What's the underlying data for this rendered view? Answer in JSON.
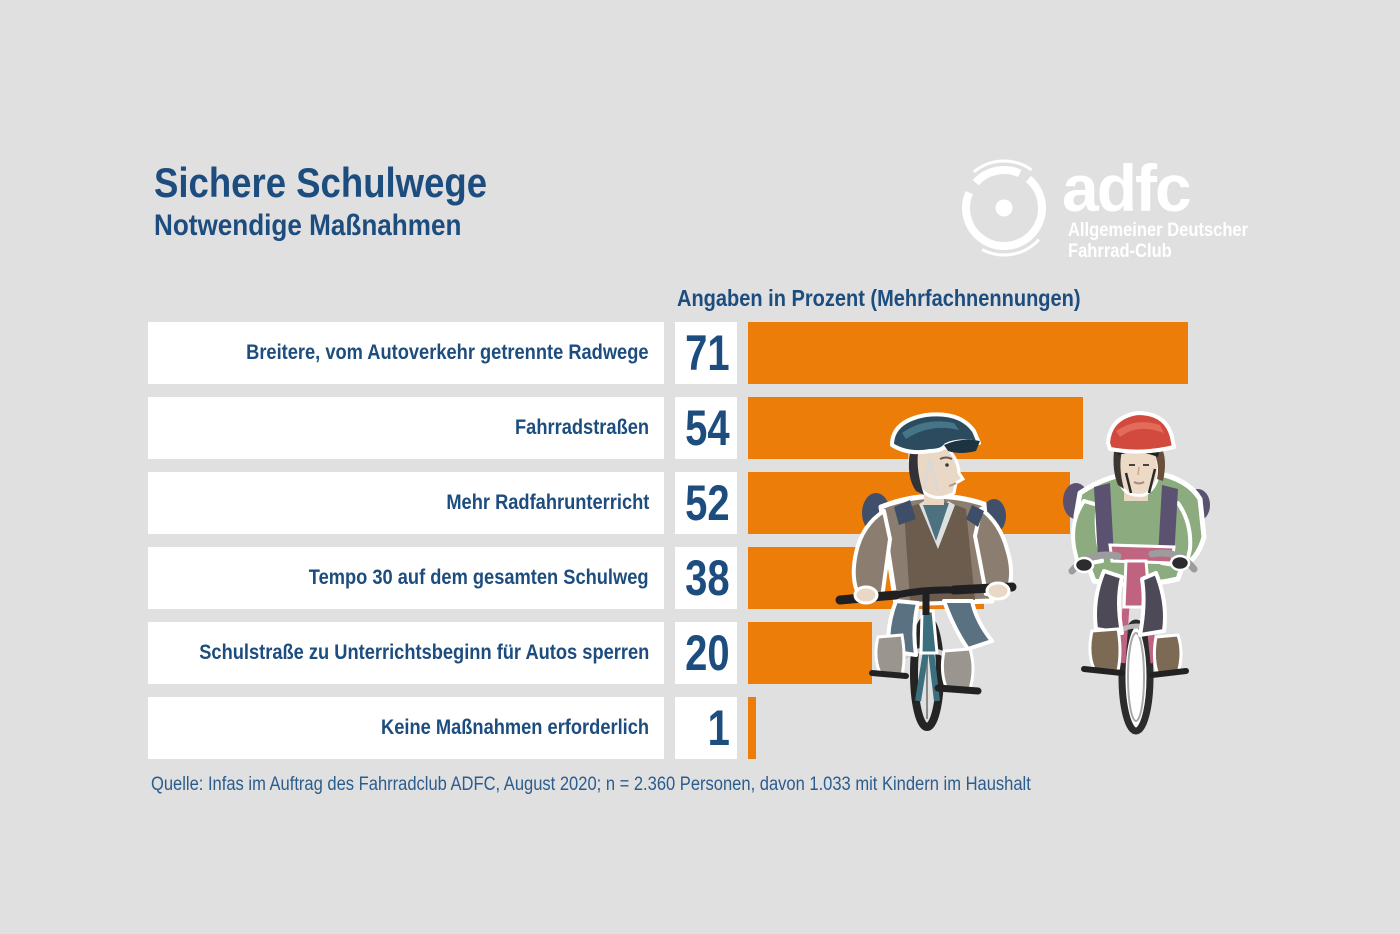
{
  "header": {
    "title": "Sichere Schulwege",
    "subtitle": "Notwendige Maßnahmen"
  },
  "logo": {
    "brand": "adfc",
    "subtitle_line1": "Allgemeiner Deutscher",
    "subtitle_line2": "Fahrrad-Club",
    "icon": "bicycle-wheel-icon",
    "color": "#ffffff"
  },
  "chart_data": {
    "type": "bar",
    "orientation": "horizontal",
    "title": "Angaben in Prozent (Mehrfachnennungen)",
    "unit": "percent",
    "categories": [
      "Breitere, vom Autoverkehr getrennte Radwege",
      "Fahrradstraßen",
      "Mehr Radfahrunterricht",
      "Tempo 30 auf dem gesamten Schulweg",
      "Schulstraße zu Unterrichtsbeginn für Autos sperren",
      "Keine Maßnahmen erforderlich"
    ],
    "values": [
      71,
      54,
      52,
      38,
      20,
      1
    ],
    "xlim": [
      0,
      80
    ],
    "bar_color": "#ec7d08",
    "grid": false,
    "legend": "none"
  },
  "illustration": {
    "name": "two-children-cycling",
    "left_child": "blue helmet, brown sweater, teal bicycle",
    "right_child": "red helmet, green sweater, pink bicycle"
  },
  "source": "Quelle: Infas im Auftrag des Fahrradclub ADFC, August 2020; n = 2.360 Personen, davon 1.033 mit Kindern im Haushalt",
  "colors": {
    "background": "#e0e0e1",
    "panel": "#ffffff",
    "bar_orange": "#ec7d08",
    "heading_blue": "#1d4d7f",
    "source_blue": "#2b5c8e"
  }
}
